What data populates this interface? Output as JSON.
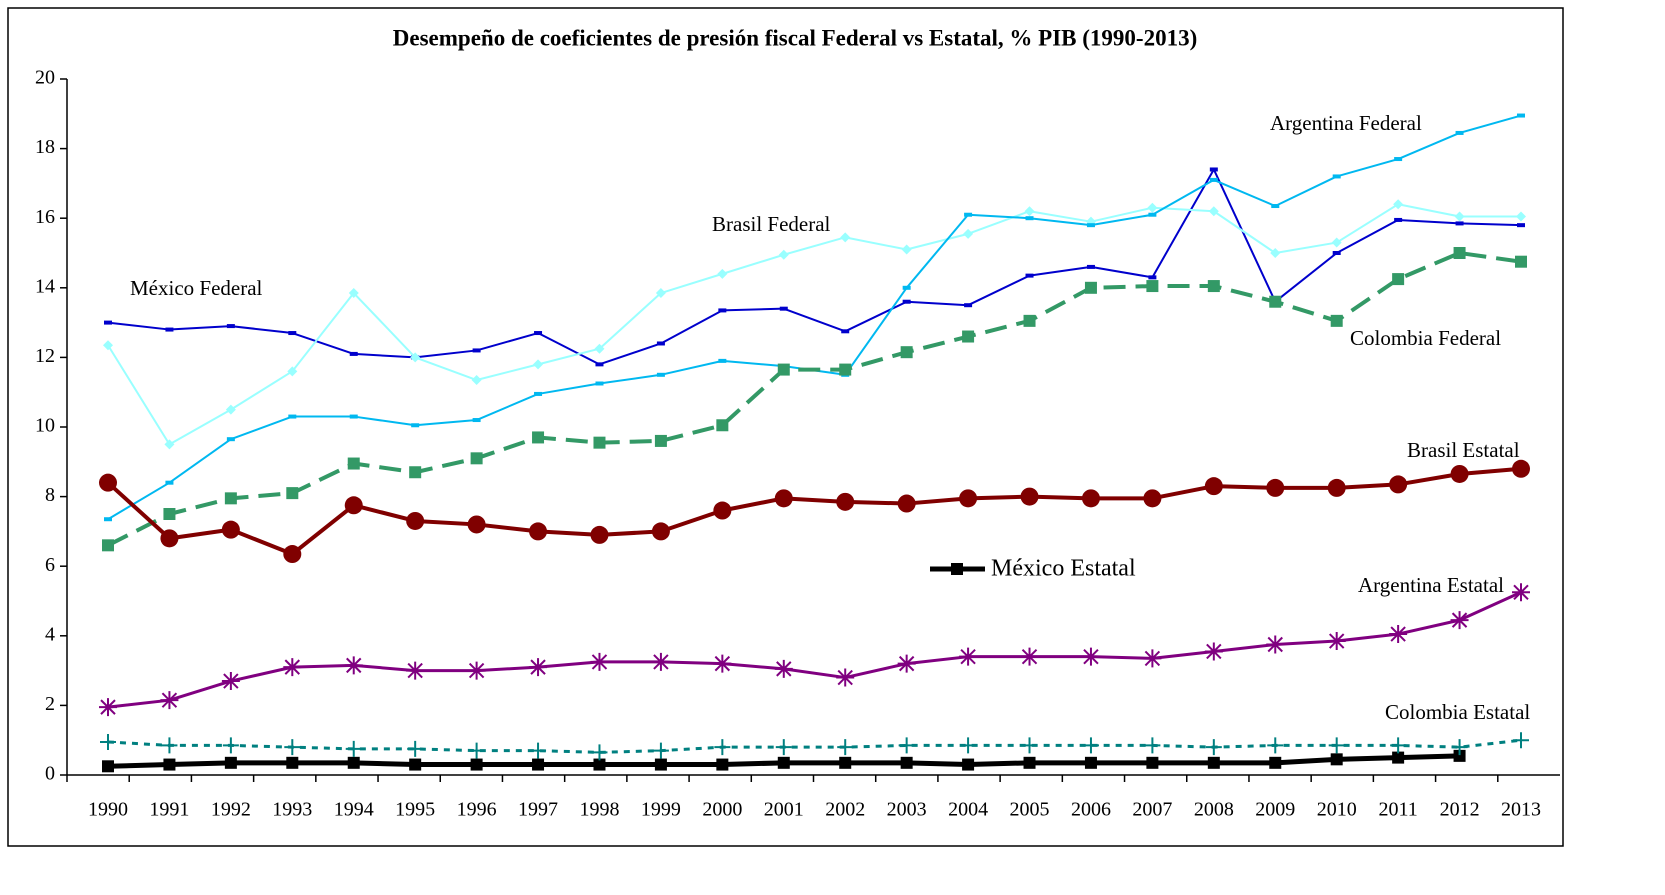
{
  "chart_data": {
    "type": "line",
    "title": "Desempeño de coeficientes de presión fiscal Federal vs Estatal, % PIB (1990-2013)",
    "categories": [
      "1990",
      "1991",
      "1992",
      "1993",
      "1994",
      "1995",
      "1996",
      "1997",
      "1998",
      "1999",
      "2000",
      "2001",
      "2002",
      "2003",
      "2004",
      "2005",
      "2006",
      "2007",
      "2008",
      "2009",
      "2010",
      "2011",
      "2012",
      "2013"
    ],
    "ylim": [
      0,
      20
    ],
    "yticks": [
      0,
      2,
      4,
      6,
      8,
      10,
      12,
      14,
      16,
      18,
      20
    ],
    "grid": false,
    "series": [
      {
        "name": "México Federal",
        "color": "#0000cc",
        "marker": "dash",
        "line_style": "solid",
        "line_width": 2,
        "values": [
          13.0,
          12.8,
          12.9,
          12.7,
          12.1,
          12.0,
          12.2,
          12.7,
          11.8,
          12.4,
          13.35,
          13.4,
          12.75,
          13.6,
          13.5,
          14.35,
          14.6,
          14.3,
          17.4,
          13.6,
          15.0,
          15.95,
          15.85,
          15.8
        ]
      },
      {
        "name": "Brasil Federal",
        "color": "#99ffff",
        "marker": "diamond",
        "line_style": "solid",
        "line_width": 2,
        "values": [
          12.35,
          9.5,
          10.5,
          11.6,
          13.85,
          12.0,
          11.35,
          11.8,
          12.25,
          13.85,
          14.4,
          14.95,
          15.45,
          15.1,
          15.55,
          16.2,
          15.9,
          16.3,
          16.2,
          15.0,
          15.3,
          16.4,
          16.05,
          16.05
        ]
      },
      {
        "name": "Argentina Federal",
        "color": "#00b8f0",
        "marker": "dash",
        "line_style": "solid",
        "line_width": 2,
        "values": [
          7.35,
          8.4,
          9.65,
          10.3,
          10.3,
          10.05,
          10.2,
          10.95,
          11.25,
          11.5,
          11.9,
          11.75,
          11.5,
          14.0,
          16.1,
          16.0,
          15.8,
          16.1,
          17.1,
          16.35,
          17.2,
          17.7,
          18.45,
          18.95
        ]
      },
      {
        "name": "Colombia Federal",
        "color": "#339966",
        "marker": "square",
        "line_style": "dashed",
        "line_width": 4,
        "values": [
          6.6,
          7.5,
          7.95,
          8.1,
          8.95,
          8.7,
          9.1,
          9.7,
          9.55,
          9.6,
          10.05,
          11.65,
          11.65,
          12.15,
          12.6,
          13.05,
          14.0,
          14.05,
          14.05,
          13.6,
          13.05,
          14.25,
          15.0,
          14.75
        ]
      },
      {
        "name": "Brasil Estatal",
        "color": "#800000",
        "marker": "circle",
        "line_style": "solid",
        "line_width": 4,
        "values": [
          8.4,
          6.8,
          7.05,
          6.35,
          7.75,
          7.3,
          7.2,
          7.0,
          6.9,
          7.0,
          7.6,
          7.95,
          7.85,
          7.8,
          7.95,
          8.0,
          7.95,
          7.95,
          8.3,
          8.25,
          8.25,
          8.35,
          8.65,
          8.8
        ]
      },
      {
        "name": "México Estatal",
        "color": "#000000",
        "marker": "square",
        "line_style": "solid",
        "line_width": 5,
        "values": [
          0.25,
          0.3,
          0.35,
          0.35,
          0.35,
          0.3,
          0.3,
          0.3,
          0.3,
          0.3,
          0.3,
          0.35,
          0.35,
          0.35,
          0.3,
          0.35,
          0.35,
          0.35,
          0.35,
          0.35,
          0.45,
          0.5,
          0.55,
          null
        ]
      },
      {
        "name": "Argentina Estatal",
        "color": "#800080",
        "marker": "star",
        "line_style": "solid",
        "line_width": 3,
        "values": [
          1.95,
          2.15,
          2.7,
          3.1,
          3.15,
          3.0,
          3.0,
          3.1,
          3.25,
          3.25,
          3.2,
          3.05,
          2.8,
          3.2,
          3.4,
          3.4,
          3.4,
          3.35,
          3.55,
          3.75,
          3.85,
          4.05,
          4.45,
          5.25
        ]
      },
      {
        "name": "Colombia Estatal",
        "color": "#008080",
        "marker": "plus",
        "line_style": "dotted",
        "line_width": 3,
        "values": [
          0.95,
          0.85,
          0.85,
          0.8,
          0.75,
          0.75,
          0.7,
          0.7,
          0.65,
          0.7,
          0.8,
          0.8,
          0.8,
          0.85,
          0.85,
          0.85,
          0.85,
          0.85,
          0.8,
          0.85,
          0.85,
          0.85,
          0.8,
          1.0
        ]
      }
    ]
  }
}
